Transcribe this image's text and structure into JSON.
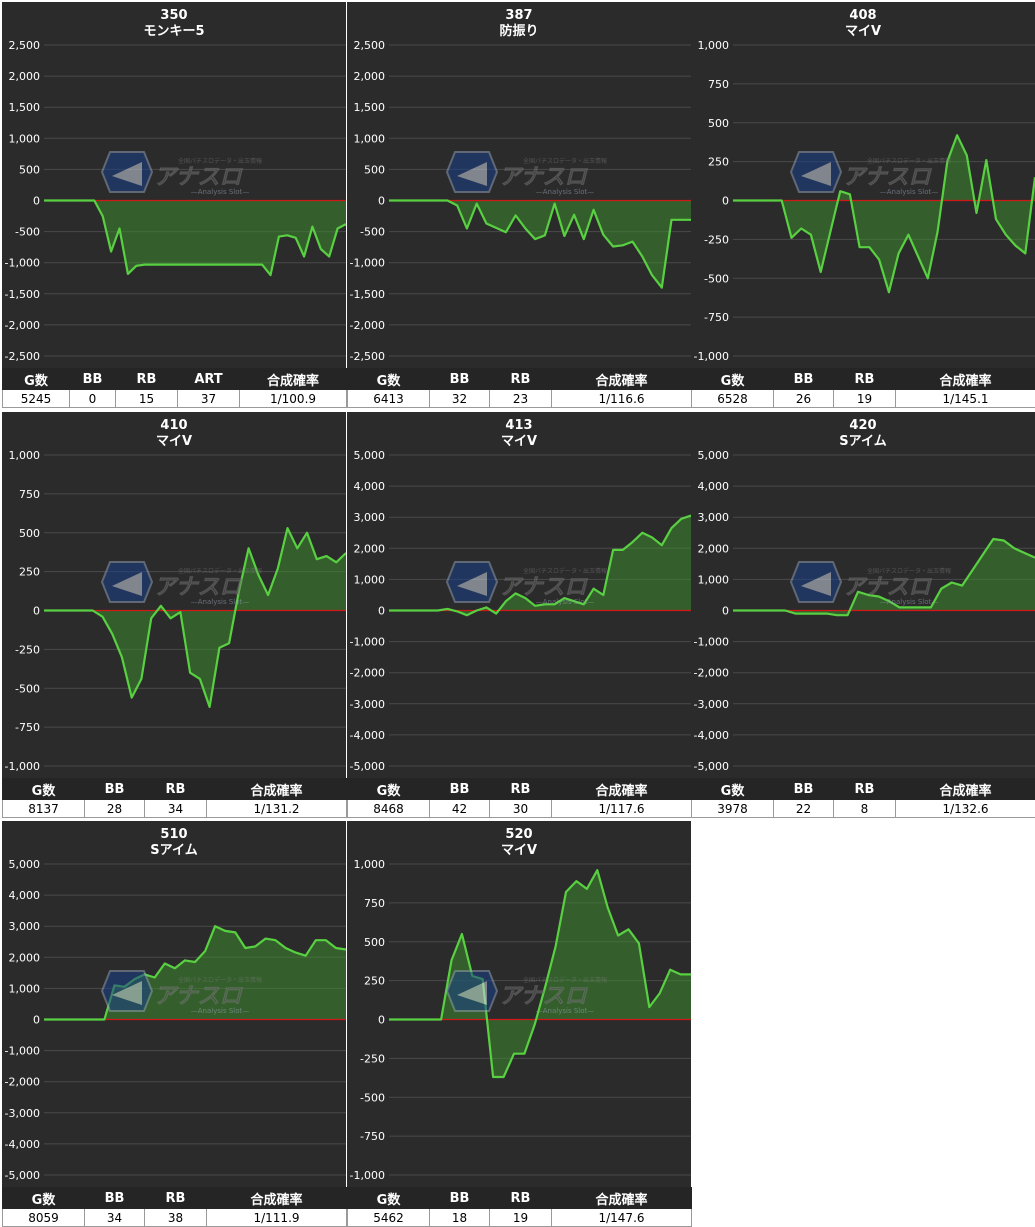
{
  "colors": {
    "panel": "#2b2b2b",
    "line": "#59d042",
    "fill": "#3c8a2e",
    "zero": "#d01818",
    "grid": "#4a4a4a"
  },
  "watermark": {
    "brand": "アナスロ",
    "sub": "—Analysis Slot—",
    "tag": "全国パチスロデータ・出玉情報"
  },
  "headers4": [
    "G数",
    "BB",
    "RB",
    "ART",
    "合成確率"
  ],
  "headers3": [
    "G数",
    "BB",
    "RB",
    "合成確率"
  ],
  "charts": [
    {
      "number": "350",
      "name": "モンキー5",
      "stats": [
        "5245",
        "0",
        "15",
        "37",
        "1/100.9"
      ],
      "chart_data": {
        "type": "area",
        "ylim": [
          -2500,
          2500
        ],
        "yticks": [
          "2,500",
          "2,000",
          "1,500",
          "1,000",
          "500",
          "0",
          "-500",
          "-1,000",
          "-1,500",
          "-2,000",
          "-2,500"
        ],
        "y": [
          0,
          0,
          0,
          0,
          0,
          0,
          0,
          -250,
          -820,
          -450,
          -1180,
          -1050,
          -1030,
          -1030,
          -1030,
          -1030,
          -1030,
          -1030,
          -1030,
          -1030,
          -1030,
          -1030,
          -1030,
          -1030,
          -1030,
          -1030,
          -1030,
          -1200,
          -580,
          -560,
          -600,
          -900,
          -420,
          -780,
          -900,
          -450,
          -380
        ]
      }
    },
    {
      "number": "387",
      "name": "防振り",
      "stats": [
        "6413",
        "32",
        "23",
        "1/116.6"
      ],
      "chart_data": {
        "type": "area",
        "ylim": [
          -2500,
          2500
        ],
        "yticks": [
          "2,500",
          "2,000",
          "1,500",
          "1,000",
          "500",
          "0",
          "-500",
          "-1,000",
          "-1,500",
          "-2,000",
          "-2,500"
        ],
        "y": [
          0,
          0,
          0,
          0,
          0,
          0,
          0,
          -80,
          -450,
          -50,
          -370,
          -440,
          -510,
          -240,
          -450,
          -620,
          -560,
          -50,
          -570,
          -230,
          -620,
          -150,
          -550,
          -740,
          -720,
          -660,
          -900,
          -1200,
          -1400,
          -310,
          -310,
          -310
        ]
      }
    },
    {
      "number": "408",
      "name": "マイV",
      "stats": [
        "6528",
        "26",
        "19",
        "1/145.1"
      ],
      "chart_data": {
        "type": "area",
        "ylim": [
          -1000,
          1000
        ],
        "yticks": [
          "1,000",
          "750",
          "500",
          "250",
          "0",
          "-250",
          "-500",
          "-750",
          "-1,000"
        ],
        "y": [
          0,
          0,
          0,
          0,
          0,
          0,
          -240,
          -180,
          -220,
          -460,
          -200,
          60,
          40,
          -300,
          -300,
          -380,
          -590,
          -340,
          -220,
          -360,
          -500,
          -200,
          250,
          420,
          290,
          -80,
          260,
          -120,
          -220,
          -290,
          -340,
          150
        ]
      }
    },
    {
      "number": "410",
      "name": "マイV",
      "stats": [
        "8137",
        "28",
        "34",
        "1/131.2"
      ],
      "chart_data": {
        "type": "area",
        "ylim": [
          -1000,
          1000
        ],
        "yticks": [
          "1,000",
          "750",
          "500",
          "250",
          "0",
          "-250",
          "-500",
          "-750",
          "-1,000"
        ],
        "y": [
          0,
          0,
          0,
          0,
          0,
          0,
          -40,
          -150,
          -300,
          -560,
          -440,
          -50,
          30,
          -50,
          -10,
          -400,
          -440,
          -620,
          -240,
          -210,
          120,
          400,
          230,
          100,
          270,
          530,
          400,
          500,
          330,
          350,
          310,
          370
        ]
      }
    },
    {
      "number": "413",
      "name": "マイV",
      "stats": [
        "8468",
        "42",
        "30",
        "1/117.6"
      ],
      "chart_data": {
        "type": "area",
        "ylim": [
          -5000,
          5000
        ],
        "yticks": [
          "5,000",
          "4,000",
          "3,000",
          "2,000",
          "1,000",
          "0",
          "-1,000",
          "-2,000",
          "-3,000",
          "-4,000",
          "-5,000"
        ],
        "y": [
          0,
          0,
          0,
          0,
          0,
          0,
          50,
          -30,
          -150,
          0,
          100,
          -100,
          300,
          550,
          400,
          150,
          200,
          200,
          400,
          300,
          200,
          700,
          500,
          1950,
          1950,
          2200,
          2500,
          2350,
          2100,
          2650,
          2950,
          3050
        ]
      }
    },
    {
      "number": "420",
      "name": "Sアイム",
      "stats": [
        "3978",
        "22",
        "8",
        "1/132.6"
      ],
      "chart_data": {
        "type": "area",
        "ylim": [
          -5000,
          5000
        ],
        "yticks": [
          "5,000",
          "4,000",
          "3,000",
          "2,000",
          "1,000",
          "0",
          "-1,000",
          "-2,000",
          "-3,000",
          "-4,000",
          "-5,000"
        ],
        "y": [
          0,
          0,
          0,
          0,
          0,
          0,
          -100,
          -100,
          -100,
          -100,
          -150,
          -150,
          600,
          500,
          450,
          300,
          100,
          100,
          100,
          100,
          700,
          900,
          800,
          1300,
          1800,
          2300,
          2250,
          2000,
          1850,
          1700
        ]
      }
    },
    {
      "number": "510",
      "name": "Sアイム",
      "stats": [
        "8059",
        "34",
        "38",
        "1/111.9"
      ],
      "chart_data": {
        "type": "area",
        "ylim": [
          -5000,
          5000
        ],
        "yticks": [
          "5,000",
          "4,000",
          "3,000",
          "2,000",
          "1,000",
          "0",
          "-1,000",
          "-2,000",
          "-3,000",
          "-4,000",
          "-5,000"
        ],
        "y": [
          0,
          0,
          0,
          0,
          0,
          0,
          0,
          1100,
          1050,
          1300,
          1450,
          1350,
          1800,
          1650,
          1900,
          1850,
          2200,
          3000,
          2850,
          2800,
          2300,
          2350,
          2600,
          2550,
          2300,
          2150,
          2050,
          2550,
          2550,
          2300,
          2250
        ]
      }
    },
    {
      "number": "520",
      "name": "マイV",
      "stats": [
        "5462",
        "18",
        "19",
        "1/147.6"
      ],
      "chart_data": {
        "type": "area",
        "ylim": [
          -1000,
          1000
        ],
        "yticks": [
          "1,000",
          "750",
          "500",
          "250",
          "0",
          "-250",
          "-500",
          "-750",
          "-1,000"
        ],
        "y": [
          0,
          0,
          0,
          0,
          0,
          0,
          380,
          550,
          280,
          260,
          -370,
          -370,
          -220,
          -220,
          -30,
          210,
          470,
          820,
          890,
          840,
          960,
          720,
          540,
          580,
          490,
          80,
          170,
          320,
          290,
          290
        ]
      }
    }
  ]
}
